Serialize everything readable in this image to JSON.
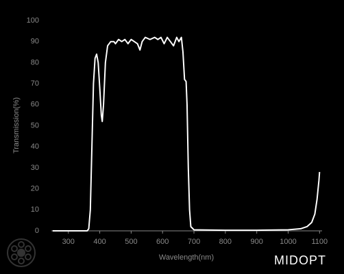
{
  "chart_data": {
    "type": "line",
    "x_label": "Wavelength(nm)",
    "y_label": "Transmission(%)",
    "brand": "MIDOPT",
    "x": [
      250,
      360,
      365,
      370,
      375,
      380,
      385,
      390,
      395,
      400,
      405,
      408,
      412,
      418,
      425,
      435,
      445,
      450,
      460,
      470,
      480,
      490,
      500,
      510,
      520,
      528,
      535,
      545,
      560,
      575,
      585,
      595,
      605,
      615,
      625,
      635,
      645,
      652,
      660,
      665,
      670,
      675,
      678,
      682,
      686,
      690,
      700,
      800,
      900,
      1000,
      1040,
      1060,
      1075,
      1085,
      1092,
      1098,
      1100
    ],
    "series": [
      {
        "color": "#ffffff",
        "values": [
          0,
          0,
          1,
          10,
          40,
          70,
          82,
          84,
          80,
          68,
          55,
          52,
          60,
          80,
          88,
          90,
          90,
          89,
          91,
          90,
          91,
          89,
          91,
          90,
          89,
          86,
          90,
          92,
          91,
          92,
          91,
          92,
          89,
          92,
          90,
          88,
          92,
          90,
          92,
          85,
          72,
          71,
          60,
          30,
          10,
          2,
          0.5,
          0.3,
          0.3,
          0.5,
          1,
          2,
          4,
          8,
          15,
          24,
          28
        ]
      }
    ],
    "xlim": [
      246,
      1108
    ],
    "ylim": [
      0,
      100
    ],
    "xticks": [
      300,
      400,
      500,
      600,
      700,
      800,
      900,
      1000,
      1100
    ],
    "yticks": [
      0,
      10,
      20,
      30,
      40,
      50,
      60,
      70,
      80,
      90,
      100
    ],
    "grid": false
  }
}
